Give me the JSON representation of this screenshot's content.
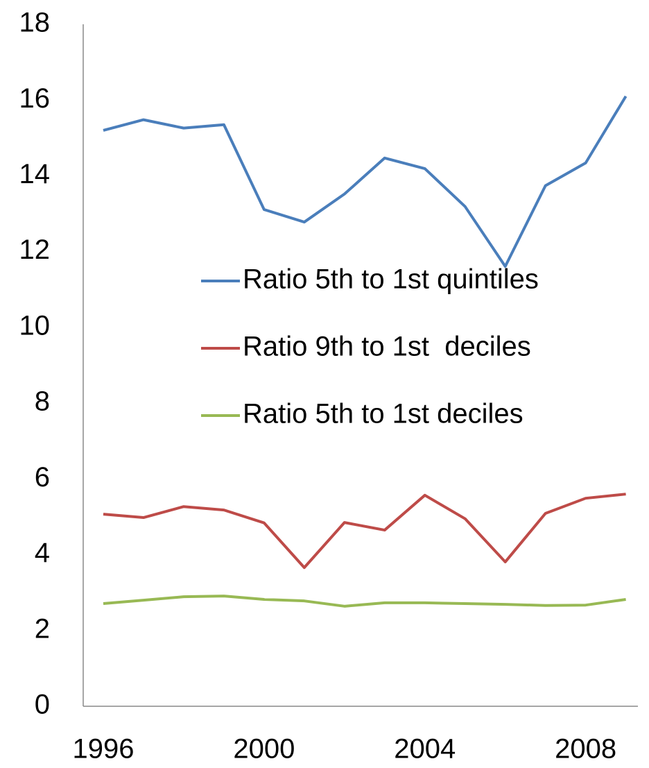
{
  "chart_data": {
    "type": "line",
    "x": [
      1996,
      1997,
      1998,
      1999,
      2000,
      2001,
      2002,
      2003,
      2004,
      2005,
      2006,
      2007,
      2008,
      2009
    ],
    "series": [
      {
        "name": "Ratio 5th to 1st quintiles",
        "color": "#4a7ebb",
        "values": [
          15.2,
          15.48,
          15.26,
          15.35,
          13.11,
          12.78,
          13.52,
          14.47,
          14.19,
          13.19,
          11.61,
          13.74,
          14.34,
          16.1
        ]
      },
      {
        "name": "Ratio 9th to 1st  deciles",
        "color": "#be4b48",
        "values": [
          5.07,
          4.98,
          5.27,
          5.18,
          4.84,
          3.66,
          4.85,
          4.65,
          5.57,
          4.95,
          3.81,
          5.09,
          5.49,
          5.6
        ]
      },
      {
        "name": "Ratio 5th to 1st deciles",
        "color": "#98b954",
        "values": [
          2.71,
          2.8,
          2.89,
          2.91,
          2.82,
          2.78,
          2.64,
          2.73,
          2.73,
          2.71,
          2.69,
          2.66,
          2.67,
          2.82
        ]
      }
    ],
    "xlim": [
      1995.5,
      2009.3
    ],
    "xticks": [
      1996,
      2000,
      2004,
      2008
    ],
    "ylim": [
      0,
      18
    ],
    "yticks": [
      0,
      2,
      4,
      6,
      8,
      10,
      12,
      14,
      16,
      18
    ],
    "grid": false
  }
}
